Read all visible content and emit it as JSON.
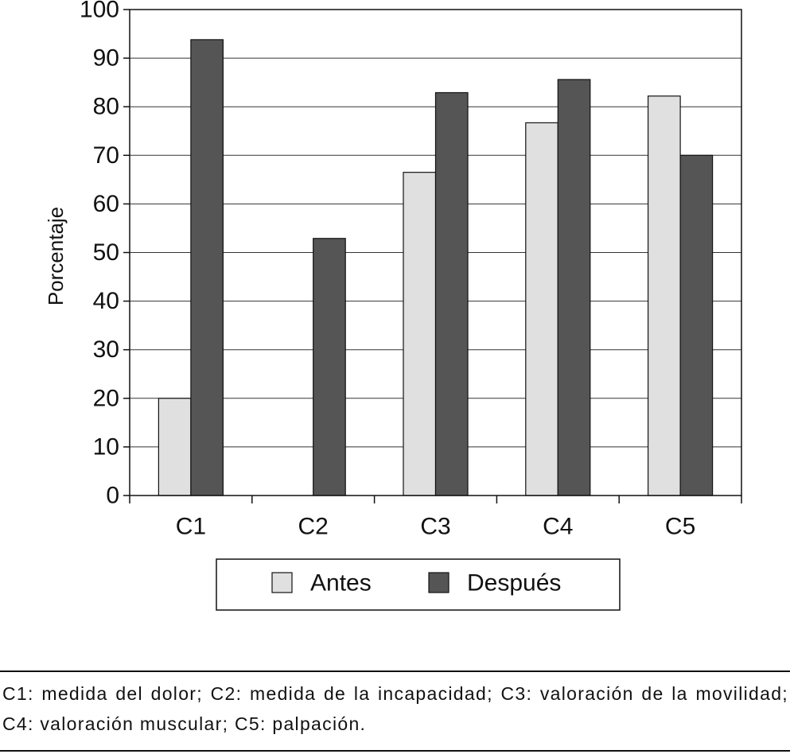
{
  "chart_data": {
    "type": "bar",
    "categories": [
      "C1",
      "C2",
      "C3",
      "C4",
      "C5"
    ],
    "series": [
      {
        "name": "Antes",
        "color": "#e0e0e0",
        "values": [
          20,
          0,
          66.5,
          76.7,
          82.2
        ]
      },
      {
        "name": "Después",
        "color": "#555555",
        "values": [
          93.8,
          52.9,
          82.9,
          85.6,
          70
        ]
      }
    ],
    "title": "",
    "xlabel": "",
    "ylabel": "Porcentaje",
    "ylim": [
      0,
      100
    ],
    "yticks": [
      0,
      10,
      20,
      30,
      40,
      50,
      60,
      70,
      80,
      90,
      100
    ],
    "grid": "horizontal",
    "legend_position": "bottom"
  },
  "caption": "C1: medida del dolor; C2: medida de la incapacidad; C3: valoración de la movilidad; C4: valoración muscular; C5: palpación."
}
